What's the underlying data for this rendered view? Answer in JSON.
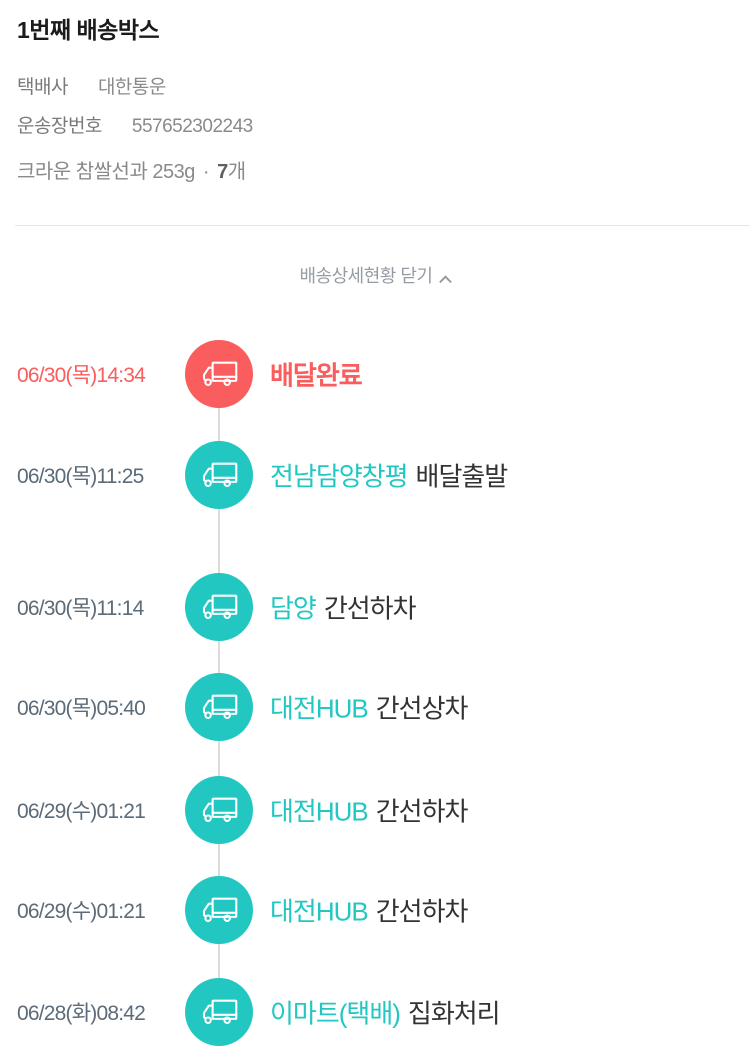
{
  "header": {
    "title": "1번째 배송박스",
    "info": [
      {
        "label": "택배사",
        "value": "대한통운"
      },
      {
        "label": "운송장번호",
        "value": "557652302243"
      }
    ],
    "product": {
      "name": "크라운 참쌀선과 253g",
      "separator": "·",
      "quantity": "7",
      "unit": "개"
    }
  },
  "toggle": {
    "label": "배송상세현황 닫기",
    "chevron_icon": "chevron-up"
  },
  "colors": {
    "delivered_red": "#f95d5d",
    "progress_teal": "#22c7c2",
    "date_gray": "#5c6b77",
    "status_dark": "#333333",
    "muted_gray": "#8a8a8a",
    "connector_line": "#dcdbd7"
  },
  "timeline": [
    {
      "datetime": "06/30(목)14:34",
      "location": "",
      "status": "배달완료",
      "state": "delivered",
      "icon": "truck"
    },
    {
      "datetime": "06/30(목)11:25",
      "location": "전남담양창평",
      "status": "배달출발",
      "state": "progress",
      "icon": "truck"
    },
    {
      "datetime": "06/30(목)11:14",
      "location": "담양",
      "status": "간선하차",
      "state": "progress",
      "icon": "truck"
    },
    {
      "datetime": "06/30(목)05:40",
      "location": "대전HUB",
      "status": "간선상차",
      "state": "progress",
      "icon": "truck"
    },
    {
      "datetime": "06/29(수)01:21",
      "location": "대전HUB",
      "status": "간선하차",
      "state": "progress",
      "icon": "truck"
    },
    {
      "datetime": "06/29(수)01:21",
      "location": "대전HUB",
      "status": "간선하차",
      "state": "progress",
      "icon": "truck"
    },
    {
      "datetime": "06/28(화)08:42",
      "location": "이마트(택배)",
      "status": "집화처리",
      "state": "progress",
      "icon": "truck"
    }
  ]
}
